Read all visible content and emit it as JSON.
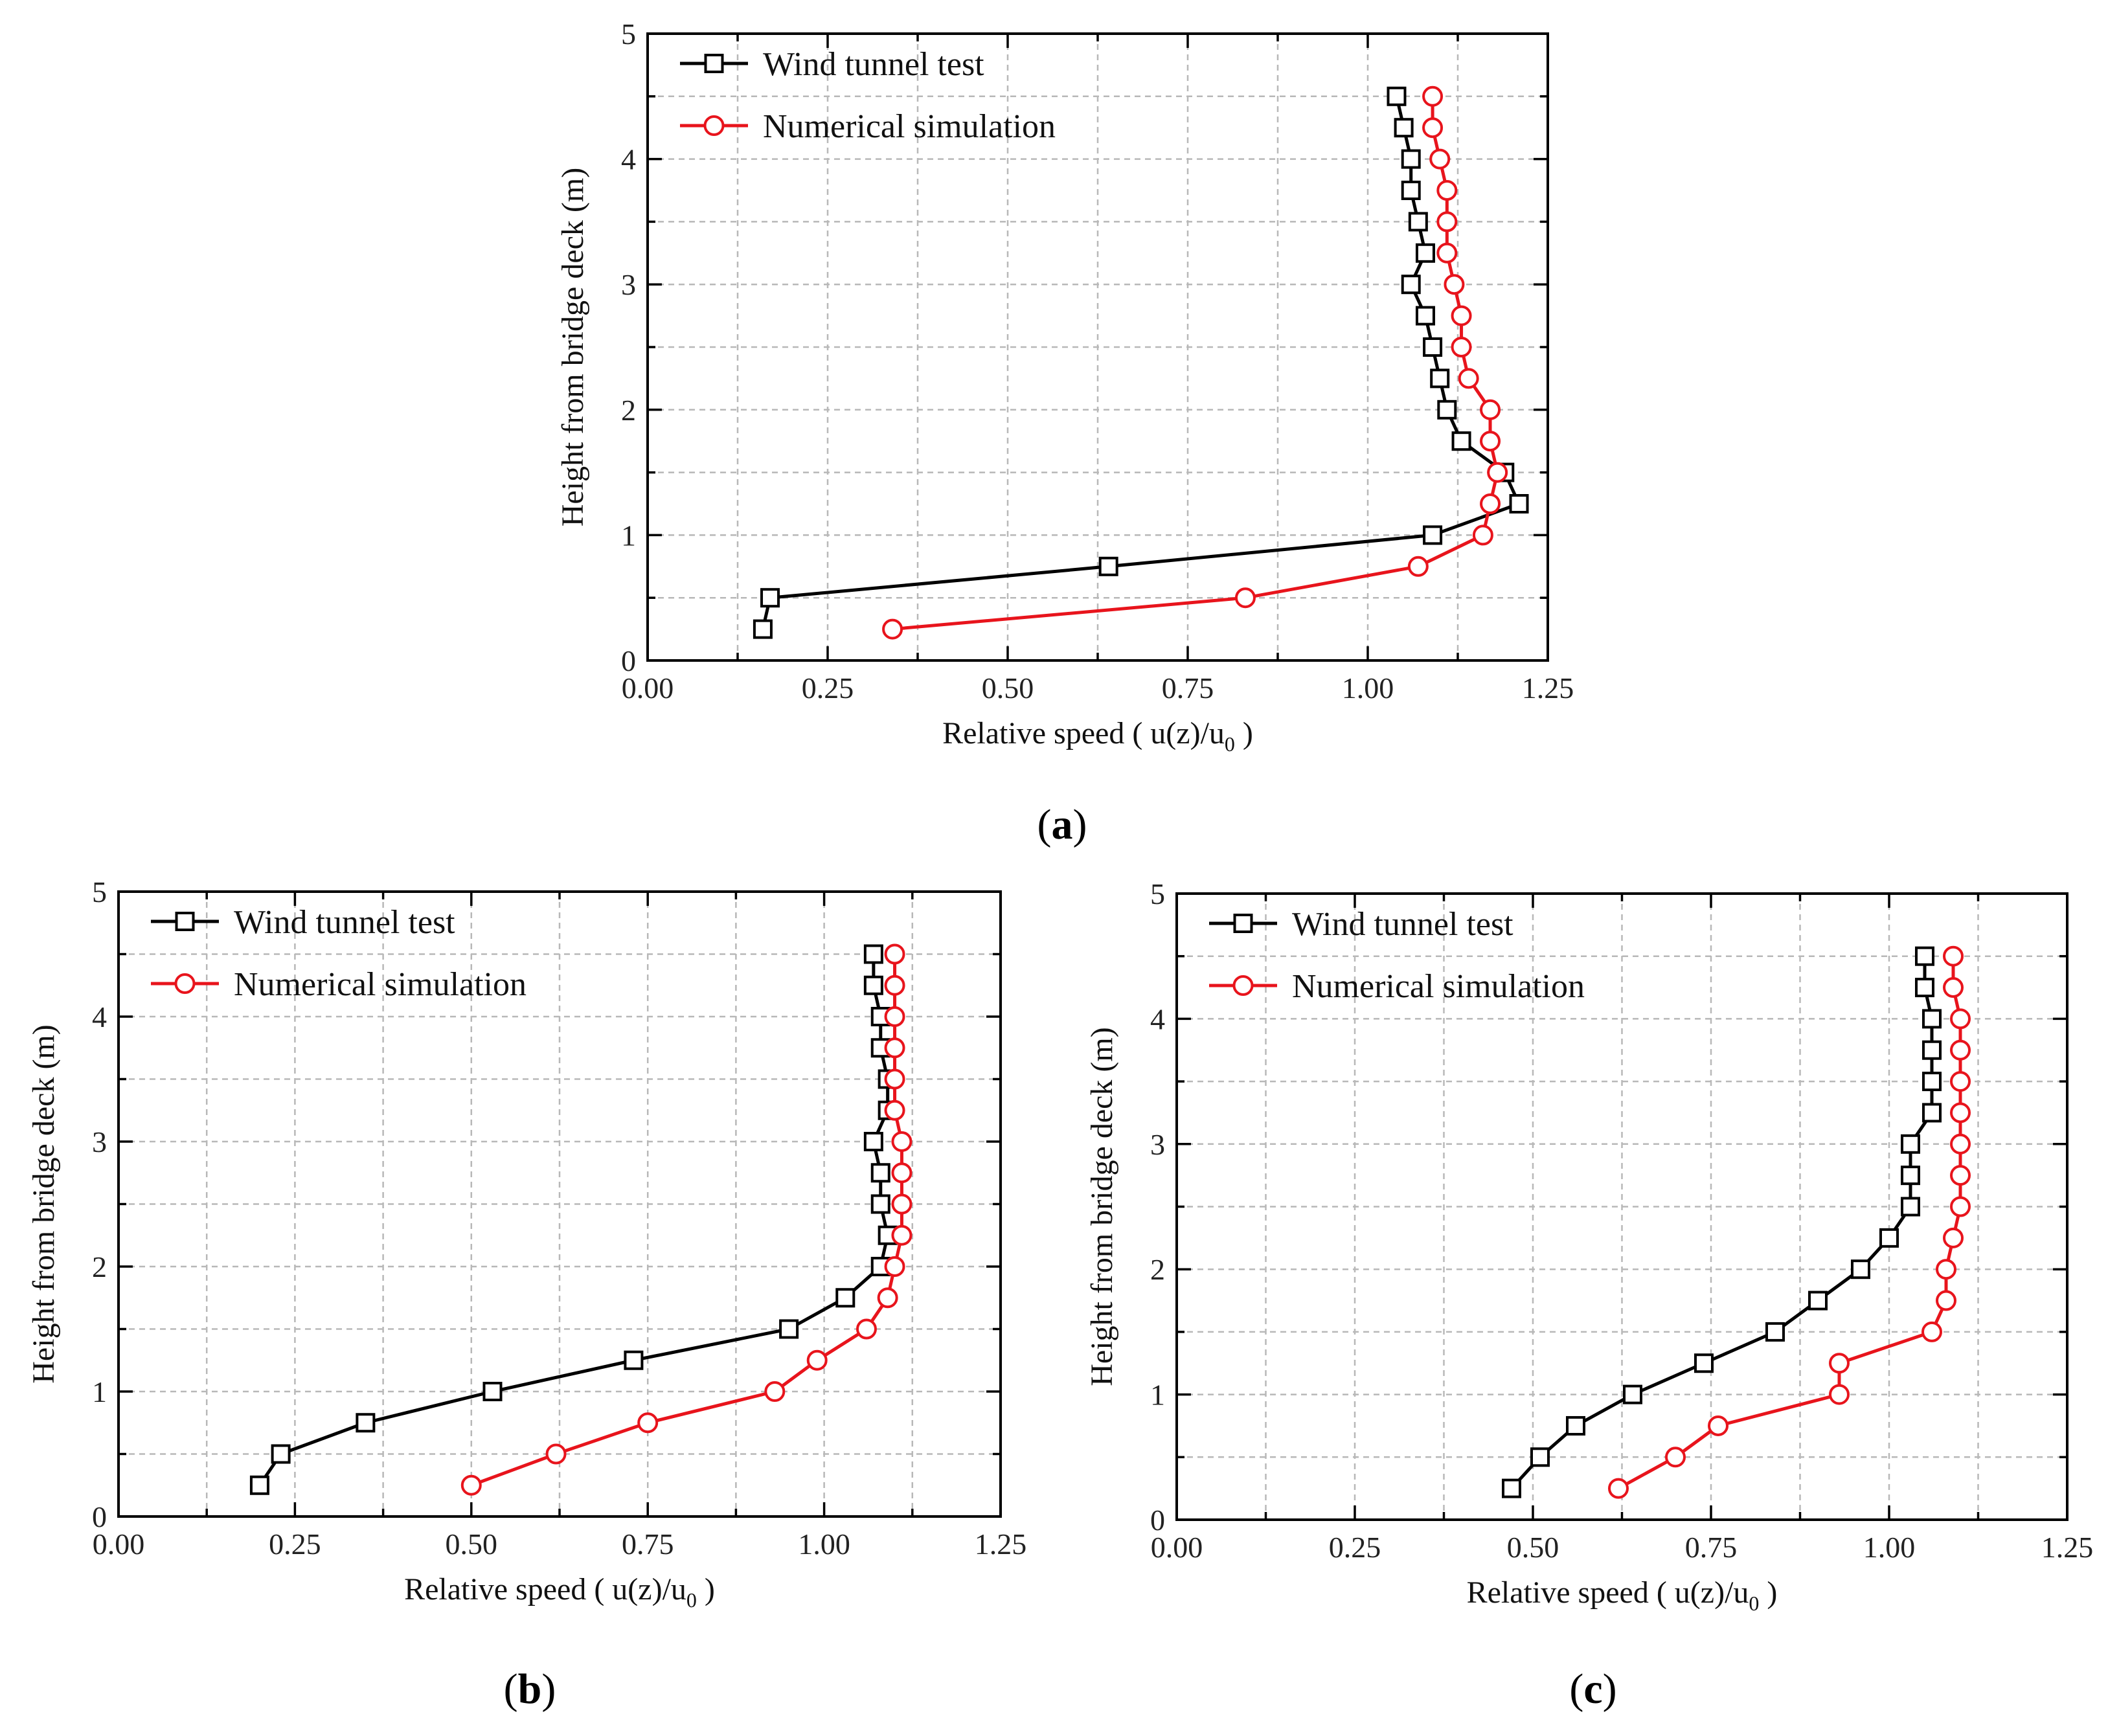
{
  "chart_data": [
    {
      "panel": "a",
      "type": "line",
      "xlabel": "Relative speed ( u(z)/u",
      "xlabel_sub": "0",
      "xlabel_end": " )",
      "ylabel": "Height from bridge deck (m)",
      "xlim": [
        0,
        1.25
      ],
      "ylim": [
        0,
        5
      ],
      "xticks": [
        "0.00",
        "0.25",
        "0.50",
        "0.75",
        "1.00",
        "1.25"
      ],
      "yticks": [
        "0",
        "1",
        "2",
        "3",
        "4",
        "5"
      ],
      "grid": true,
      "legend_position": "top-left",
      "series": [
        {
          "name": "Wind tunnel test",
          "color": "#000000",
          "marker": "square",
          "points": [
            [
              0.16,
              0.25
            ],
            [
              0.17,
              0.5
            ],
            [
              0.64,
              0.75
            ],
            [
              1.09,
              1.0
            ],
            [
              1.21,
              1.25
            ],
            [
              1.19,
              1.5
            ],
            [
              1.13,
              1.75
            ],
            [
              1.11,
              2.0
            ],
            [
              1.1,
              2.25
            ],
            [
              1.09,
              2.5
            ],
            [
              1.08,
              2.75
            ],
            [
              1.06,
              3.0
            ],
            [
              1.08,
              3.25
            ],
            [
              1.07,
              3.5
            ],
            [
              1.06,
              3.75
            ],
            [
              1.06,
              4.0
            ],
            [
              1.05,
              4.25
            ],
            [
              1.04,
              4.5
            ]
          ]
        },
        {
          "name": "Numerical simulation",
          "color": "#e8141c",
          "marker": "circle",
          "points": [
            [
              0.34,
              0.25
            ],
            [
              0.83,
              0.5
            ],
            [
              1.07,
              0.75
            ],
            [
              1.16,
              1.0
            ],
            [
              1.17,
              1.25
            ],
            [
              1.18,
              1.5
            ],
            [
              1.17,
              1.75
            ],
            [
              1.17,
              2.0
            ],
            [
              1.14,
              2.25
            ],
            [
              1.13,
              2.5
            ],
            [
              1.13,
              2.75
            ],
            [
              1.12,
              3.0
            ],
            [
              1.11,
              3.25
            ],
            [
              1.11,
              3.5
            ],
            [
              1.11,
              3.75
            ],
            [
              1.1,
              4.0
            ],
            [
              1.09,
              4.25
            ],
            [
              1.09,
              4.5
            ]
          ]
        }
      ]
    },
    {
      "panel": "b",
      "type": "line",
      "xlabel": "Relative speed ( u(z)/u",
      "xlabel_sub": "0",
      "xlabel_end": " )",
      "ylabel": "Height from bridge deck (m)",
      "xlim": [
        0,
        1.25
      ],
      "ylim": [
        0,
        5
      ],
      "xticks": [
        "0.00",
        "0.25",
        "0.50",
        "0.75",
        "1.00",
        "1.25"
      ],
      "yticks": [
        "0",
        "1",
        "2",
        "3",
        "4",
        "5"
      ],
      "grid": true,
      "legend_position": "top-left",
      "series": [
        {
          "name": "Wind tunnel test",
          "color": "#000000",
          "marker": "square",
          "points": [
            [
              0.2,
              0.25
            ],
            [
              0.23,
              0.5
            ],
            [
              0.35,
              0.75
            ],
            [
              0.53,
              1.0
            ],
            [
              0.73,
              1.25
            ],
            [
              0.95,
              1.5
            ],
            [
              1.03,
              1.75
            ],
            [
              1.08,
              2.0
            ],
            [
              1.09,
              2.25
            ],
            [
              1.08,
              2.5
            ],
            [
              1.08,
              2.75
            ],
            [
              1.07,
              3.0
            ],
            [
              1.09,
              3.25
            ],
            [
              1.09,
              3.5
            ],
            [
              1.08,
              3.75
            ],
            [
              1.08,
              4.0
            ],
            [
              1.07,
              4.25
            ],
            [
              1.07,
              4.5
            ]
          ]
        },
        {
          "name": "Numerical simulation",
          "color": "#e8141c",
          "marker": "circle",
          "points": [
            [
              0.5,
              0.25
            ],
            [
              0.62,
              0.5
            ],
            [
              0.75,
              0.75
            ],
            [
              0.93,
              1.0
            ],
            [
              0.99,
              1.25
            ],
            [
              1.06,
              1.5
            ],
            [
              1.09,
              1.75
            ],
            [
              1.1,
              2.0
            ],
            [
              1.11,
              2.25
            ],
            [
              1.11,
              2.5
            ],
            [
              1.11,
              2.75
            ],
            [
              1.11,
              3.0
            ],
            [
              1.1,
              3.25
            ],
            [
              1.1,
              3.5
            ],
            [
              1.1,
              3.75
            ],
            [
              1.1,
              4.0
            ],
            [
              1.1,
              4.25
            ],
            [
              1.1,
              4.5
            ]
          ]
        }
      ]
    },
    {
      "panel": "c",
      "type": "line",
      "xlabel": "Relative speed ( u(z)/u",
      "xlabel_sub": "0",
      "xlabel_end": " )",
      "ylabel": "Height from bridge deck (m)",
      "xlim": [
        0,
        1.25
      ],
      "ylim": [
        0,
        5
      ],
      "xticks": [
        "0.00",
        "0.25",
        "0.50",
        "0.75",
        "1.00",
        "1.25"
      ],
      "yticks": [
        "0",
        "1",
        "2",
        "3",
        "4",
        "5"
      ],
      "grid": true,
      "legend_position": "top-left",
      "series": [
        {
          "name": "Wind tunnel test",
          "color": "#000000",
          "marker": "square",
          "points": [
            [
              0.47,
              0.25
            ],
            [
              0.51,
              0.5
            ],
            [
              0.56,
              0.75
            ],
            [
              0.64,
              1.0
            ],
            [
              0.74,
              1.25
            ],
            [
              0.84,
              1.5
            ],
            [
              0.9,
              1.75
            ],
            [
              0.96,
              2.0
            ],
            [
              1.0,
              2.25
            ],
            [
              1.03,
              2.5
            ],
            [
              1.03,
              2.75
            ],
            [
              1.03,
              3.0
            ],
            [
              1.06,
              3.25
            ],
            [
              1.06,
              3.5
            ],
            [
              1.06,
              3.75
            ],
            [
              1.06,
              4.0
            ],
            [
              1.05,
              4.25
            ],
            [
              1.05,
              4.5
            ]
          ]
        },
        {
          "name": "Numerical simulation",
          "color": "#e8141c",
          "marker": "circle",
          "points": [
            [
              0.62,
              0.25
            ],
            [
              0.7,
              0.5
            ],
            [
              0.76,
              0.75
            ],
            [
              0.93,
              1.0
            ],
            [
              0.93,
              1.25
            ],
            [
              1.06,
              1.5
            ],
            [
              1.08,
              1.75
            ],
            [
              1.08,
              2.0
            ],
            [
              1.09,
              2.25
            ],
            [
              1.1,
              2.5
            ],
            [
              1.1,
              2.75
            ],
            [
              1.1,
              3.0
            ],
            [
              1.1,
              3.25
            ],
            [
              1.1,
              3.5
            ],
            [
              1.1,
              3.75
            ],
            [
              1.1,
              4.0
            ],
            [
              1.09,
              4.25
            ],
            [
              1.09,
              4.5
            ]
          ]
        }
      ]
    }
  ],
  "panel_labels": [
    {
      "open": "(",
      "letter": "a",
      "close": ")"
    },
    {
      "open": "(",
      "letter": "b",
      "close": ")"
    },
    {
      "open": "(",
      "letter": "c",
      "close": ")"
    }
  ]
}
